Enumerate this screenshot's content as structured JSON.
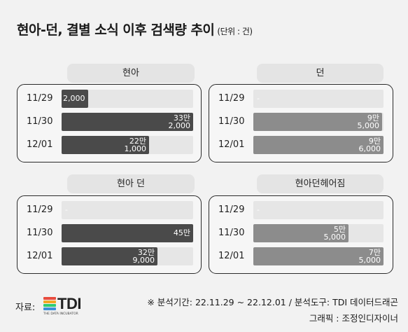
{
  "title": "현아-던, 결별 소식 이후 검색량 추이",
  "unit": "(단위 : 건)",
  "colors": {
    "background": "#f2f2f2",
    "track": "#e6e6e6",
    "panel_label_bg": "#e4e4e4",
    "series_dark": "#4a4a4a",
    "series_gray": "#8c8c8c"
  },
  "chart_data": [
    {
      "type": "bar",
      "title": "현아",
      "categories": [
        "11/29",
        "11/30",
        "12/01"
      ],
      "values": [
        2000,
        332000,
        221000
      ],
      "labels": [
        [
          "2,000"
        ],
        [
          "33만",
          "2,000"
        ],
        [
          "22만",
          "1,000"
        ]
      ],
      "color": "#4a4a4a"
    },
    {
      "type": "bar",
      "title": "던",
      "categories": [
        "11/29",
        "11/30",
        "12/01"
      ],
      "values": [
        null,
        95000,
        96000
      ],
      "labels": [
        [
          "-"
        ],
        [
          "9만",
          "5,000"
        ],
        [
          "9만",
          "6,000"
        ]
      ],
      "color": "#8c8c8c"
    },
    {
      "type": "bar",
      "title": "현아 던",
      "categories": [
        "11/29",
        "11/30",
        "12/01"
      ],
      "values": [
        null,
        450000,
        329000
      ],
      "labels": [
        [
          "-"
        ],
        [
          "45만"
        ],
        [
          "32만",
          "9,000"
        ]
      ],
      "color": "#4a4a4a"
    },
    {
      "type": "bar",
      "title": "현아던헤어짐",
      "categories": [
        "11/29",
        "11/30",
        "12/01"
      ],
      "values": [
        null,
        55000,
        75000
      ],
      "labels": [
        [
          "-"
        ],
        [
          "5만",
          "5,000"
        ],
        [
          "7만",
          "5,000"
        ]
      ],
      "color": "#8c8c8c"
    }
  ],
  "footer": {
    "source_label": "자료:",
    "logo_text": "TDI",
    "logo_tagline": "THE DATA INCUBATOR",
    "logo_colors": [
      "#e84c3d",
      "#f5a623",
      "#2ecc71",
      "#3b8fd9"
    ],
    "note": "※ 분석기간:  22.11.29 ~ 22.12.01 / 분석도구: TDI 데이터드래곤",
    "credit": "그래픽 : 조정인디자이너"
  }
}
